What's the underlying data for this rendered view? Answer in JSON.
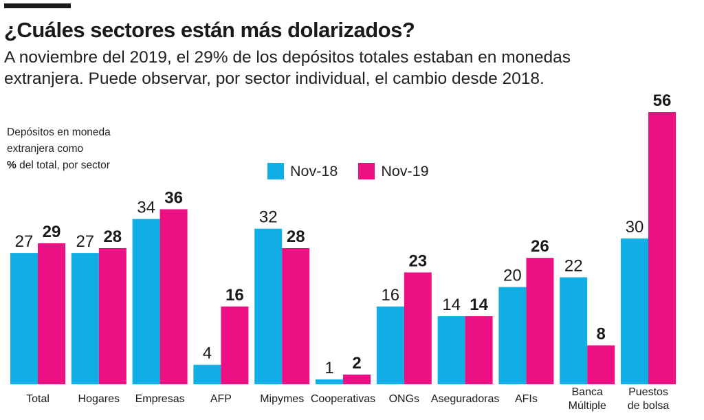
{
  "header": {
    "title": "¿Cuáles sectores están más dolarizados?",
    "subtitle": "A noviembre del 2019, el 29% de los depósitos totales estaban en monedas extranjera. Puede observar, por sector individual, el cambio desde 2018."
  },
  "axis_note": {
    "line1": "Depósitos en moneda",
    "line2": "extranjera como",
    "line3_bold": "%",
    "line3_rest": " del total, por sector"
  },
  "colors": {
    "nov18": "#10aee5",
    "nov19": "#ec1084",
    "text": "#1a1a1a"
  },
  "chart_data": {
    "type": "bar",
    "title": "¿Cuáles sectores están más dolarizados?",
    "ylabel": "Depósitos en moneda extranjera como % del total, por sector",
    "xlabel": "",
    "ylim": [
      0,
      56
    ],
    "legend": "top-center",
    "grid": false,
    "categories": [
      [
        "Total"
      ],
      [
        "Hogares"
      ],
      [
        "Empresas"
      ],
      [
        "AFP"
      ],
      [
        "Mipymes"
      ],
      [
        "Cooperativas"
      ],
      [
        "ONGs"
      ],
      [
        "Aseguradoras"
      ],
      [
        "AFIs"
      ],
      [
        "Banca",
        "Múltiple"
      ],
      [
        "Puestos",
        "de bolsa"
      ]
    ],
    "series": [
      {
        "name": "Nov-18",
        "values": [
          27,
          27,
          34,
          4,
          32,
          1,
          16,
          14,
          20,
          22,
          30
        ]
      },
      {
        "name": "Nov-19",
        "values": [
          29,
          28,
          36,
          16,
          28,
          2,
          23,
          14,
          26,
          8,
          56
        ]
      }
    ]
  }
}
